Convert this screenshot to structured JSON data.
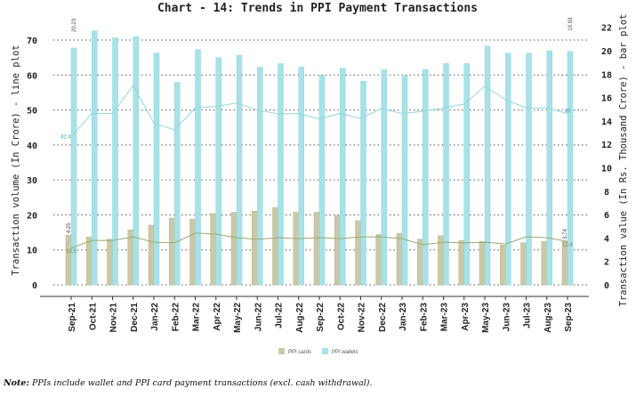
{
  "chart_data": {
    "type": "bar+line",
    "title": "Chart - 14: Trends in PPI Payment Transactions",
    "ylabel_left": "Transaction volume (In Crore) - line plot",
    "ylabel_right": "Transaction value (In Rs. Thousand Crore) - bar plot",
    "ylim_left": [
      0,
      70
    ],
    "ylim_right": [
      0,
      22
    ],
    "yticks_left": [
      0,
      10,
      20,
      30,
      40,
      50,
      60,
      70
    ],
    "yticks_right": [
      0,
      2,
      4,
      6,
      8,
      10,
      12,
      14,
      16,
      18,
      20,
      22
    ],
    "grid": true,
    "legend_placement": "bottom",
    "categories": [
      "Sep-21",
      "Oct-21",
      "Nov-21",
      "Dec-21",
      "Jan-22",
      "Feb-22",
      "Mar-22",
      "Apr-22",
      "May-22",
      "Jun-22",
      "Jul-22",
      "Aug-22",
      "Sep-22",
      "Oct-22",
      "Nov-22",
      "Dec-22",
      "Jan-23",
      "Feb-23",
      "Mar-23",
      "Apr-23",
      "May-23",
      "Jun-23",
      "Jul-23",
      "Aug-23",
      "Sep-23"
    ],
    "bar_series": [
      {
        "name": "PPI cards",
        "color": "#c9c9a8",
        "values": [
          4.25,
          4.1,
          3.9,
          4.7,
          5.1,
          5.7,
          5.6,
          6.1,
          6.2,
          6.3,
          6.6,
          6.2,
          6.2,
          5.9,
          5.5,
          4.3,
          4.4,
          3.9,
          4.2,
          3.8,
          3.7,
          3.4,
          3.6,
          3.7,
          3.74
        ]
      },
      {
        "name": "PPI wallets",
        "color": "#a8e2e8",
        "values": [
          20.23,
          21.7,
          21.1,
          21.2,
          19.8,
          17.3,
          20.1,
          19.4,
          19.6,
          18.6,
          18.9,
          18.6,
          17.9,
          18.5,
          17.4,
          18.4,
          17.9,
          18.4,
          18.9,
          18.9,
          20.4,
          19.8,
          19.8,
          20.0,
          19.93
        ]
      }
    ],
    "line_series": [
      {
        "of": "PPI cards",
        "color": "#9aa872",
        "values": [
          10.5,
          12.7,
          12.7,
          13.7,
          12.2,
          12.0,
          14.8,
          14.5,
          13.5,
          13.0,
          13.5,
          13.2,
          13.5,
          13.2,
          13.7,
          13.7,
          13.2,
          11.5,
          12.2,
          12.0,
          12.2,
          11.7,
          13.7,
          13.5,
          12.4
        ]
      },
      {
        "of": "PPI wallets",
        "color": "#8fd6de",
        "values": [
          42.4,
          49,
          49,
          57,
          46.3,
          44.3,
          50.6,
          51,
          52,
          50,
          48.9,
          49,
          47.4,
          49,
          47.6,
          50.4,
          49,
          49.6,
          50.6,
          51.7,
          56.8,
          53,
          50.6,
          50.6,
          49
        ]
      }
    ],
    "data_labels": {
      "cards_bar_first": "4.25",
      "cards_bar_last": "3.74",
      "wallets_bar_first": "20.23",
      "wallets_bar_last": "19.93",
      "cards_line_first": "10.5",
      "cards_line_last": "12.4",
      "wallets_line_first": "42.4",
      "wallets_line_last": "49"
    }
  },
  "note_label": "Note:",
  "note_text": " PPIs include wallet and PPI card payment transactions (excl. cash withdrawal)."
}
